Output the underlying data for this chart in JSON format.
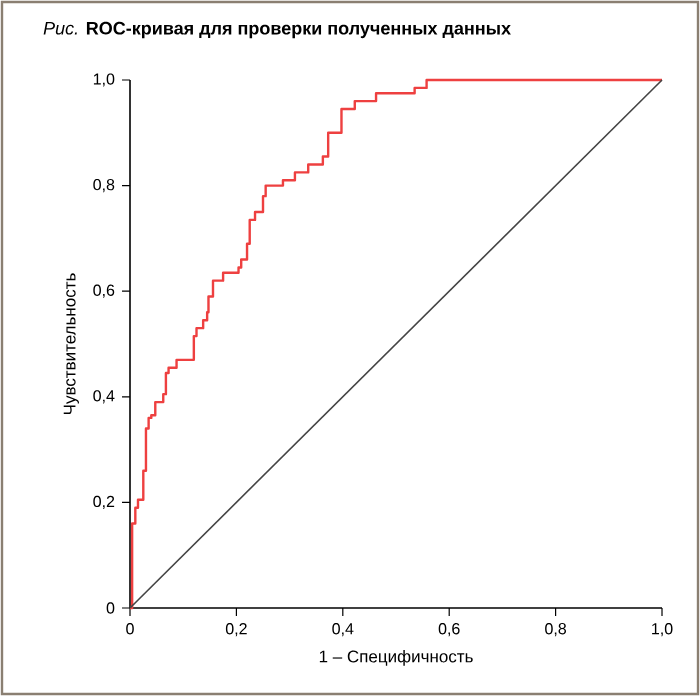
{
  "chart_data": {
    "type": "line",
    "title": "*Рис.* **ROC-кривая для проверки полученных данных**",
    "xlabel": "1 – Специфичность",
    "ylabel": "Чувствительность",
    "xlim": [
      0,
      1
    ],
    "ylim": [
      0,
      1
    ],
    "xticks": [
      0,
      {
        "value": 0.2,
        "label": "0,2"
      },
      {
        "value": 0.4,
        "label": "0,4"
      },
      {
        "value": 0.6,
        "label": "0,6"
      },
      {
        "value": 0.8,
        "label": "0,8"
      },
      {
        "value": 1,
        "label": "1,0"
      }
    ],
    "yticks": [
      0,
      {
        "value": 0.2,
        "label": "0,2"
      },
      {
        "value": 0.4,
        "label": "0,4"
      },
      {
        "value": 0.6,
        "label": "0,6"
      },
      {
        "value": 0.8,
        "label": "0,8"
      },
      {
        "value": 1,
        "label": "1,0"
      }
    ],
    "series": [
      {
        "type": "step",
        "color": "#ee4040",
        "x": [
          0,
          0.004,
          0.01,
          0.015,
          0.025,
          0.03,
          0.035,
          0.04,
          0.0475,
          0.0625,
          0.0675,
          0.0725,
          0.0875,
          0.12,
          0.125,
          0.1375,
          0.145,
          0.1475,
          0.156,
          0.175,
          0.204,
          0.209,
          0.22,
          0.225,
          0.235,
          0.25,
          0.255,
          0.2875,
          0.31,
          0.335,
          0.3625,
          0.3725,
          0.3975,
          0.4225,
          0.4625,
          0.535,
          0.5575,
          1
        ],
        "values": [
          0,
          0.16,
          0.19,
          0.205,
          0.26,
          0.34,
          0.36,
          0.365,
          0.39,
          0.405,
          0.445,
          0.455,
          0.47,
          0.515,
          0.53,
          0.545,
          0.56,
          0.59,
          0.62,
          0.635,
          0.645,
          0.66,
          0.69,
          0.735,
          0.75,
          0.78,
          0.8,
          0.81,
          0.825,
          0.84,
          0.855,
          0.9,
          0.945,
          0.96,
          0.975,
          0.985,
          1,
          1
        ]
      },
      {
        "color": "#444444",
        "x": [
          0,
          1
        ],
        "values": [
          0,
          1
        ]
      }
    ]
  }
}
